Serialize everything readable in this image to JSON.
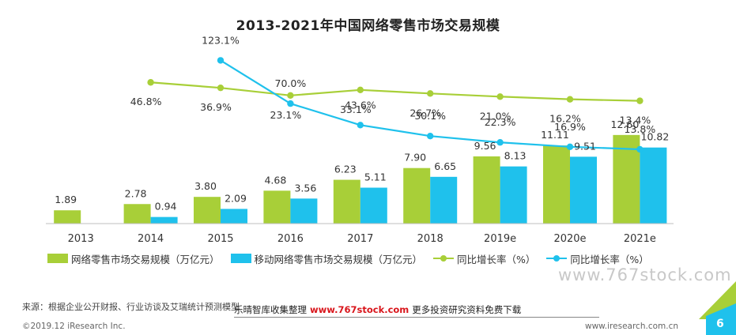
{
  "title": "2013-2021年中国网络零售市场交易规模",
  "chart_data": {
    "type": "bar",
    "categories": [
      "2013",
      "2014",
      "2015",
      "2016",
      "2017",
      "2018",
      "2019e",
      "2020e",
      "2021e"
    ],
    "series": [
      {
        "name": "网络零售市场交易规模（万亿元）",
        "kind": "bar",
        "color": "#a8cf38",
        "values": [
          1.89,
          2.78,
          3.8,
          4.68,
          6.23,
          7.9,
          9.56,
          11.11,
          12.6
        ],
        "labels": [
          "1.89",
          "2.78",
          "3.80",
          "4.68",
          "6.23",
          "7.90",
          "9.56",
          "11.11",
          "12.60"
        ]
      },
      {
        "name": "移动网络零售市场交易规模（万亿元）",
        "kind": "bar",
        "color": "#1fc1ec",
        "values": [
          null,
          0.94,
          2.09,
          3.56,
          5.11,
          6.65,
          8.13,
          9.51,
          10.82
        ],
        "labels": [
          "",
          "0.94",
          "2.09",
          "3.56",
          "5.11",
          "6.65",
          "8.13",
          "9.51",
          "10.82"
        ]
      },
      {
        "name": "同比增长率（%）",
        "kind": "line",
        "color": "#a8cf38",
        "values": [
          null,
          46.8,
          36.9,
          23.1,
          33.1,
          26.7,
          21.0,
          16.2,
          13.4
        ],
        "labels": [
          "",
          "46.8%",
          "36.9%",
          "23.1%",
          "33.1%",
          "26.7%",
          "21.0%",
          "16.2%",
          "13.4%"
        ]
      },
      {
        "name": "同比增长率（%）",
        "kind": "line",
        "color": "#1fc1ec",
        "values": [
          null,
          null,
          123.1,
          70.0,
          43.6,
          30.1,
          22.3,
          16.9,
          13.8
        ],
        "labels": [
          "",
          "",
          "123.1%",
          "70.0%",
          "43.6%",
          "30.1%",
          "22.3%",
          "16.9%",
          "13.8%"
        ]
      }
    ],
    "xlabel": "",
    "ylabel": "",
    "legend_position": "bottom",
    "grid": false
  },
  "footer": {
    "watermark": "www.767stock.com",
    "source": "来源：根据企业公开财报、行业访谈及艾瑞统计预测模型",
    "promo_left": "乐晴智库收集整理",
    "promo_site": "www.767stock.com",
    "promo_right": "更多投资研究资料免费下载",
    "copyright": "©2019.12 iResearch Inc.",
    "website": "www.iresearch.com.cn",
    "page_number": "6"
  }
}
